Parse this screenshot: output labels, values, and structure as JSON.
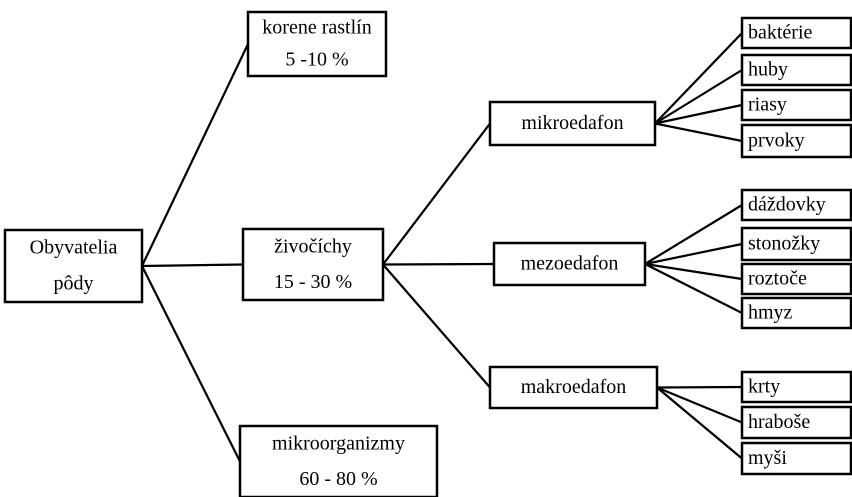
{
  "nodes": [
    {
      "lines": [
        "Obyvatelia",
        "pôdy"
      ]
    },
    {
      "lines": [
        "korene rastlín",
        "5 -10 %"
      ]
    },
    {
      "lines": [
        "živočíchy",
        "15 - 30 %"
      ]
    },
    {
      "lines": [
        "mikroorganizmy",
        "60 - 80 %"
      ]
    },
    {
      "lines": [
        "mikroedafon"
      ]
    },
    {
      "lines": [
        "mezoedafon"
      ]
    },
    {
      "lines": [
        "makroedafon"
      ]
    },
    {
      "lines": [
        "baktérie"
      ]
    },
    {
      "lines": [
        "huby"
      ]
    },
    {
      "lines": [
        "riasy"
      ]
    },
    {
      "lines": [
        "prvoky"
      ]
    },
    {
      "lines": [
        "dáždovky"
      ]
    },
    {
      "lines": [
        "stonožky"
      ]
    },
    {
      "lines": [
        "roztoče"
      ]
    },
    {
      "lines": [
        "hmyz"
      ]
    },
    {
      "lines": [
        "krty"
      ]
    },
    {
      "lines": [
        "hraboše"
      ]
    },
    {
      "lines": [
        "myši"
      ]
    }
  ]
}
